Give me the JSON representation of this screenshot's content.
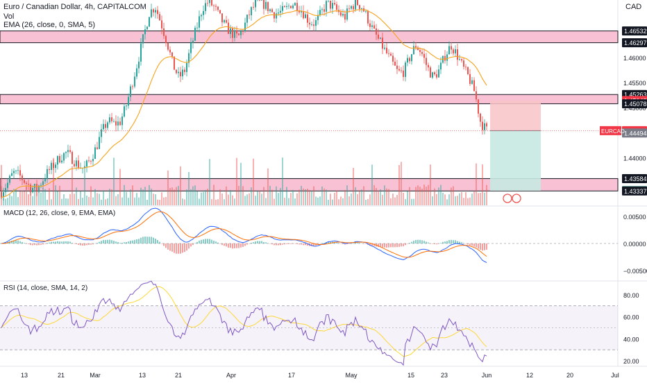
{
  "header": {
    "symbol_line": "Euro / Canadian Dollar, 4h, CAPITALCOM",
    "volume_label": "Vol",
    "ema_label": "EMA (26, close, 0, SMA, 5)",
    "currency": "CAD"
  },
  "panes": {
    "macd_label": "MACD (12, 26, close, 9, EMA, EMA)",
    "rsi_label": "RSI (14, close, SMA, 14, 2)"
  },
  "colors": {
    "up": "#26a69a",
    "down": "#ef5350",
    "zone": "#f48fb1",
    "ema": "#f7a21b",
    "macd": "#2962ff",
    "signal": "#ff6d00",
    "rsi": "#7e57c2",
    "rsi_ma": "#fdd835",
    "stop_zone": "#f8c4c7",
    "target_zone": "#c8e9e2"
  },
  "chart_data": [
    {
      "type": "candlestick",
      "title": "Euro / Canadian Dollar, 4h, CAPITALCOM",
      "x_tick_labels": [
        "13",
        "21",
        "Mar",
        "13",
        "21",
        "Apr",
        "17",
        "May",
        "15",
        "23",
        "Jun",
        "12",
        "20",
        "Jul"
      ],
      "y_tick_labels": [
        "1.46000",
        "1.45500",
        "1.45000",
        "1.44000"
      ],
      "ylim": [
        1.4305,
        1.4715
      ],
      "last_price_label": "EURCAD",
      "price_markers": [
        {
          "value": "1.46532",
          "style": "dark"
        },
        {
          "value": "1.46297",
          "style": "dark"
        },
        {
          "value": "1.45263",
          "style": "dark"
        },
        {
          "value": "1.45143",
          "style": "red"
        },
        {
          "value": "1.45078",
          "style": "dark"
        },
        {
          "value": "1.44541",
          "style": "red"
        },
        {
          "value": "1.44494",
          "style": "gray"
        },
        {
          "value": "1.43584",
          "style": "dark"
        },
        {
          "value": "1.43342",
          "style": "green"
        },
        {
          "value": "1.43337",
          "style": "dark"
        }
      ],
      "zones": [
        {
          "from": 1.46297,
          "to": 1.46532
        },
        {
          "from": 1.45078,
          "to": 1.45263
        },
        {
          "from": 1.43337,
          "to": 1.43584
        }
      ],
      "position_tool": {
        "entry": 1.44541,
        "stop": 1.45143,
        "target": 1.43342
      },
      "close_path": [
        1.4332,
        1.4348,
        1.437,
        1.4365,
        1.4352,
        1.434,
        1.4338,
        1.4356,
        1.4374,
        1.4388,
        1.4402,
        1.441,
        1.4398,
        1.4385,
        1.4378,
        1.4396,
        1.442,
        1.4452,
        1.4474,
        1.4468,
        1.447,
        1.45,
        1.4545,
        1.459,
        1.464,
        1.469,
        1.4702,
        1.4668,
        1.463,
        1.4585,
        1.456,
        1.4575,
        1.462,
        1.466,
        1.47,
        1.4712,
        1.47,
        1.4678,
        1.466,
        1.4648,
        1.464,
        1.4662,
        1.469,
        1.4708,
        1.471,
        1.47,
        1.4688,
        1.469,
        1.4695,
        1.4708,
        1.4705,
        1.469,
        1.4672,
        1.4668,
        1.4688,
        1.4708,
        1.4702,
        1.469,
        1.468,
        1.47,
        1.471,
        1.47,
        1.4675,
        1.465,
        1.463,
        1.461,
        1.459,
        1.457,
        1.4572,
        1.46,
        1.4625,
        1.461,
        1.458,
        1.456,
        1.4575,
        1.4605,
        1.4625,
        1.4605,
        1.458,
        1.456,
        1.453,
        1.447,
        1.4455
      ]
    },
    {
      "type": "line",
      "title": "MACD (12, 26, close, 9, EMA, EMA)",
      "y_tick_labels": [
        "0.00500",
        "0.00000",
        "−0.00500"
      ],
      "ylim": [
        -0.0068,
        0.0068
      ]
    },
    {
      "type": "line",
      "title": "RSI (14, close, SMA, 14, 2)",
      "y_tick_labels": [
        "80.00",
        "60.00",
        "40.00",
        "20.00"
      ],
      "ylim": [
        15,
        92
      ],
      "bands": [
        30,
        70
      ]
    }
  ]
}
